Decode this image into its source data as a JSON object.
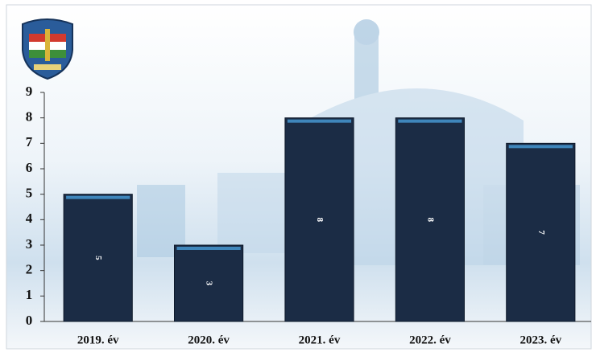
{
  "chart_data": {
    "type": "bar",
    "categories": [
      "2019. év",
      "2020. év",
      "2021. év",
      "2022. év",
      "2023. év"
    ],
    "values": [
      5,
      3,
      8,
      8,
      7
    ],
    "color": "#1b2c45",
    "ylim": [
      0,
      9
    ],
    "yticks": [
      0,
      1,
      2,
      3,
      4,
      5,
      6,
      7,
      8,
      9
    ],
    "grid": false,
    "data_labels": true
  }
}
